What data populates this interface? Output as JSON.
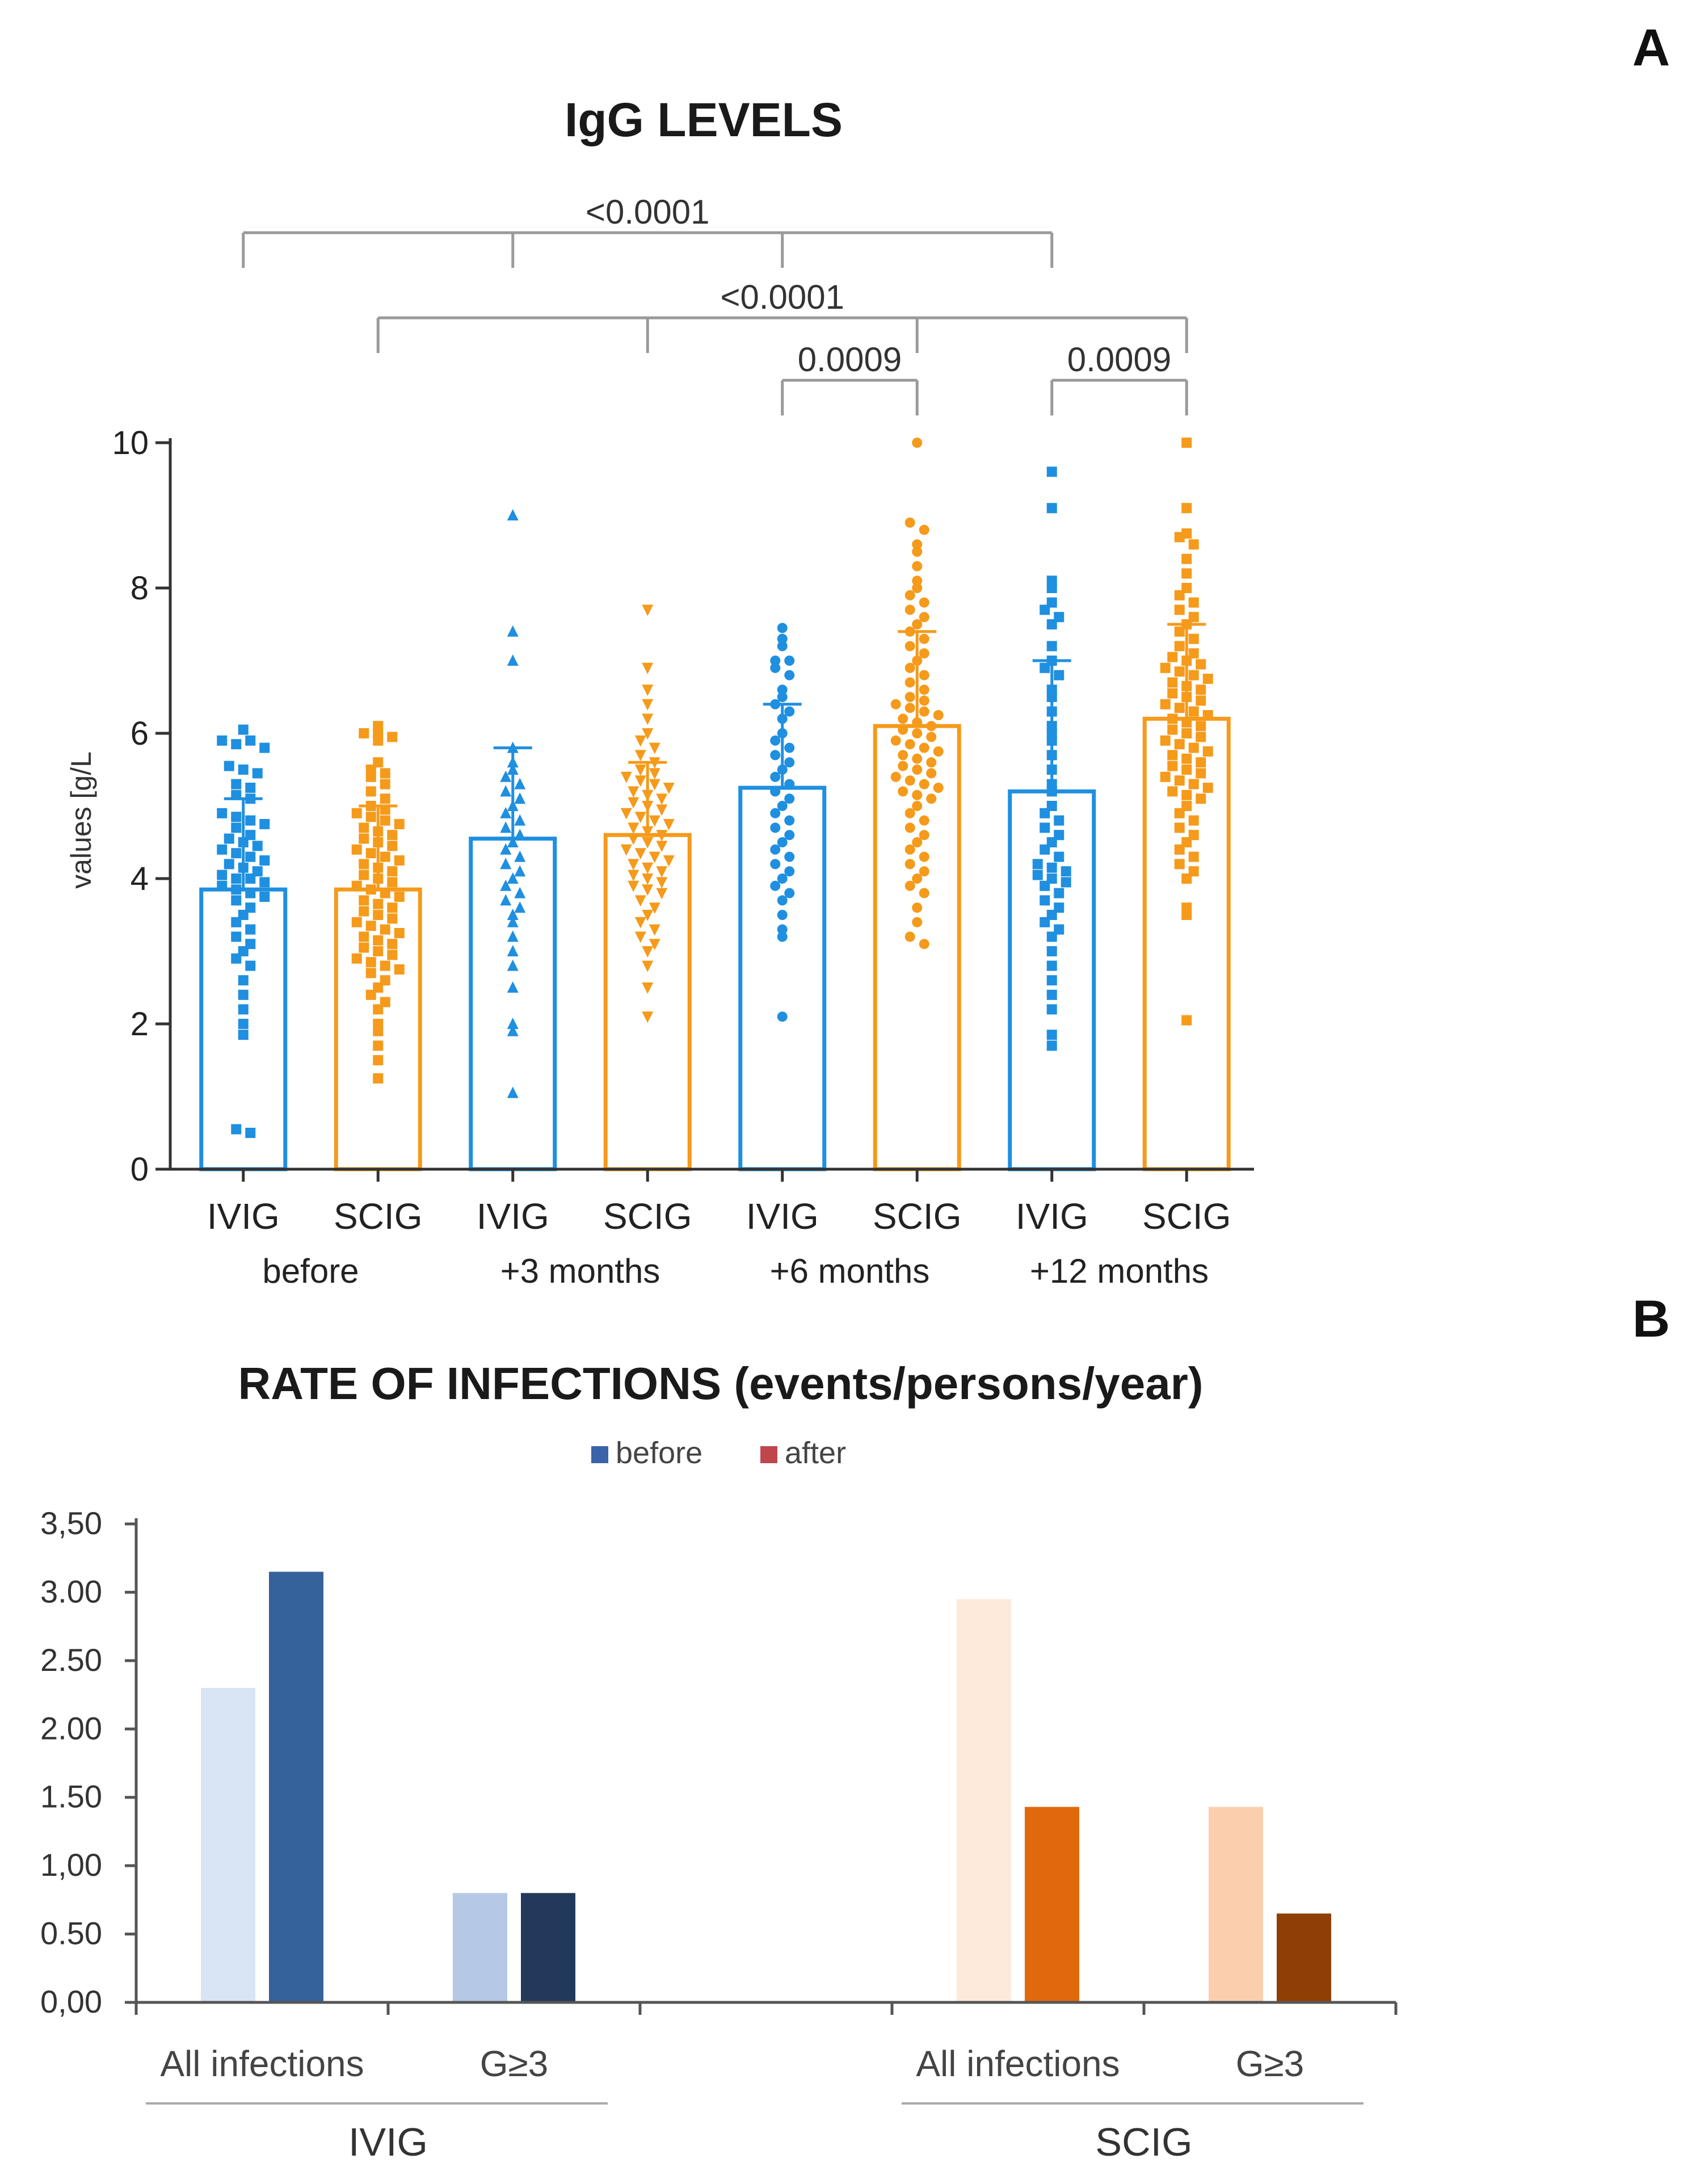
{
  "panel_labels": {
    "a": "A",
    "b": "B"
  },
  "colors": {
    "ivig": "#1f8fe0",
    "scig": "#f59a1a",
    "axis": "#333333",
    "bracket": "#9a9a9a",
    "ivig_before": "#d9e4f4",
    "ivig_after": "#35629a",
    "ivig_g3_before": "#b5c9e6",
    "ivig_g3_after": "#22395c",
    "scig_before": "#fdeadb",
    "scig_after": "#e0690e",
    "scig_g3_before": "#fbcfae",
    "scig_g3_after": "#8f3f05",
    "legend_before": "#3a63a8",
    "legend_after": "#c0464d"
  },
  "chart_data": [
    {
      "type": "scatter",
      "title": "IgG LEVELS",
      "ylabel": "values [g/L",
      "ylim": [
        0,
        10
      ],
      "yticks": [
        "0",
        "2",
        "4",
        "6",
        "8",
        "10"
      ],
      "categories": [
        "IVIG",
        "SCIG",
        "IVIG",
        "SCIG",
        "IVIG",
        "SCIG",
        "IVIG",
        "SCIG"
      ],
      "groups": [
        "before",
        "+3 months",
        "+6 months",
        "+12 months"
      ],
      "means": [
        3.85,
        3.85,
        4.55,
        4.6,
        5.25,
        6.1,
        5.2,
        6.2
      ],
      "sd_upper": [
        5.1,
        5.0,
        5.8,
        5.6,
        6.4,
        7.4,
        7.0,
        7.5
      ],
      "series": [
        {
          "name": "IVIG before",
          "marker": "square",
          "values": [
            6.05,
            5.9,
            5.85,
            5.9,
            5.8,
            5.55,
            5.5,
            5.45,
            5.3,
            5.25,
            5.15,
            5.1,
            4.9,
            4.85,
            4.8,
            4.75,
            4.7,
            4.6,
            4.55,
            4.5,
            4.45,
            4.4,
            4.35,
            4.3,
            4.25,
            4.2,
            4.15,
            4.1,
            4.05,
            4.0,
            4.0,
            3.95,
            3.9,
            3.85,
            3.8,
            3.75,
            3.7,
            3.6,
            3.5,
            3.4,
            3.3,
            3.2,
            3.1,
            3.0,
            2.9,
            2.8,
            2.6,
            2.4,
            2.2,
            2.0,
            1.85,
            0.55,
            0.5
          ]
        },
        {
          "name": "SCIG before",
          "marker": "square",
          "values": [
            6.1,
            6.0,
            6.0,
            5.95,
            5.9,
            5.6,
            5.5,
            5.45,
            5.4,
            5.3,
            5.2,
            5.1,
            5.0,
            4.95,
            4.9,
            4.85,
            4.8,
            4.75,
            4.7,
            4.65,
            4.6,
            4.55,
            4.5,
            4.45,
            4.4,
            4.35,
            4.3,
            4.25,
            4.2,
            4.15,
            4.1,
            4.05,
            4.0,
            3.95,
            3.9,
            3.85,
            3.8,
            3.75,
            3.7,
            3.65,
            3.6,
            3.55,
            3.5,
            3.45,
            3.4,
            3.35,
            3.3,
            3.25,
            3.2,
            3.15,
            3.1,
            3.05,
            3.0,
            2.95,
            2.9,
            2.85,
            2.8,
            2.75,
            2.7,
            2.6,
            2.5,
            2.4,
            2.3,
            2.2,
            2.0,
            1.9,
            1.7,
            1.5,
            1.25
          ]
        },
        {
          "name": "IVIG +3 months",
          "marker": "triangle-up",
          "values": [
            9.0,
            7.4,
            7.0,
            5.8,
            5.6,
            5.5,
            5.4,
            5.3,
            5.2,
            5.1,
            5.0,
            4.9,
            4.8,
            4.7,
            4.6,
            4.5,
            4.4,
            4.3,
            4.2,
            4.1,
            4.0,
            3.9,
            3.8,
            3.7,
            3.6,
            3.5,
            3.4,
            3.2,
            3.0,
            2.8,
            2.5,
            2.0,
            1.9,
            1.05
          ]
        },
        {
          "name": "SCIG +3 months",
          "marker": "triangle-down",
          "values": [
            7.7,
            6.9,
            6.6,
            6.4,
            6.2,
            6.0,
            5.9,
            5.8,
            5.7,
            5.6,
            5.5,
            5.45,
            5.4,
            5.35,
            5.3,
            5.25,
            5.2,
            5.15,
            5.1,
            5.05,
            5.0,
            4.95,
            4.9,
            4.85,
            4.8,
            4.75,
            4.7,
            4.65,
            4.6,
            4.55,
            4.5,
            4.45,
            4.4,
            4.35,
            4.3,
            4.25,
            4.2,
            4.15,
            4.1,
            4.05,
            4.0,
            3.95,
            3.9,
            3.85,
            3.8,
            3.7,
            3.6,
            3.5,
            3.4,
            3.3,
            3.2,
            3.1,
            3.0,
            2.8,
            2.5,
            2.1
          ]
        },
        {
          "name": "IVIG +6 months",
          "marker": "circle",
          "values": [
            7.45,
            7.3,
            7.2,
            7.0,
            7.0,
            6.9,
            6.8,
            6.6,
            6.5,
            6.4,
            6.3,
            6.2,
            6.0,
            5.9,
            5.8,
            5.7,
            5.6,
            5.5,
            5.4,
            5.3,
            5.2,
            5.1,
            5.0,
            4.9,
            4.8,
            4.7,
            4.6,
            4.5,
            4.4,
            4.3,
            4.2,
            4.1,
            4.0,
            3.9,
            3.8,
            3.7,
            3.5,
            3.3,
            3.2,
            2.1
          ]
        },
        {
          "name": "SCIG +6 months",
          "marker": "circle",
          "values": [
            10.0,
            8.9,
            8.8,
            8.6,
            8.5,
            8.3,
            8.1,
            8.0,
            7.9,
            7.8,
            7.7,
            7.6,
            7.5,
            7.4,
            7.3,
            7.2,
            7.1,
            7.0,
            6.9,
            6.8,
            6.7,
            6.6,
            6.5,
            6.45,
            6.4,
            6.35,
            6.3,
            6.25,
            6.2,
            6.15,
            6.1,
            6.05,
            6.0,
            5.95,
            5.9,
            5.85,
            5.8,
            5.75,
            5.7,
            5.65,
            5.6,
            5.55,
            5.5,
            5.45,
            5.4,
            5.35,
            5.3,
            5.25,
            5.2,
            5.15,
            5.1,
            5.0,
            4.9,
            4.8,
            4.7,
            4.6,
            4.5,
            4.4,
            4.3,
            4.2,
            4.1,
            4.0,
            3.9,
            3.8,
            3.6,
            3.4,
            3.2,
            3.1
          ]
        },
        {
          "name": "IVIG +12 months",
          "marker": "square",
          "values": [
            9.6,
            9.1,
            8.1,
            8.0,
            7.8,
            7.7,
            7.6,
            7.5,
            7.2,
            7.0,
            6.9,
            6.8,
            6.6,
            6.5,
            6.3,
            6.1,
            6.0,
            5.9,
            5.7,
            5.5,
            5.3,
            5.2,
            5.0,
            4.9,
            4.8,
            4.7,
            4.6,
            4.5,
            4.4,
            4.3,
            4.2,
            4.15,
            4.1,
            4.05,
            4.0,
            3.95,
            3.9,
            3.8,
            3.7,
            3.6,
            3.5,
            3.4,
            3.3,
            3.2,
            3.0,
            2.8,
            2.6,
            2.4,
            2.2,
            1.85,
            1.7
          ]
        },
        {
          "name": "SCIG +12 months",
          "marker": "square",
          "values": [
            10.0,
            9.1,
            8.75,
            8.7,
            8.6,
            8.4,
            8.2,
            8.0,
            7.9,
            7.8,
            7.7,
            7.6,
            7.5,
            7.4,
            7.3,
            7.2,
            7.1,
            7.05,
            7.0,
            6.95,
            6.9,
            6.85,
            6.8,
            6.75,
            6.7,
            6.65,
            6.6,
            6.55,
            6.5,
            6.45,
            6.4,
            6.35,
            6.3,
            6.25,
            6.2,
            6.15,
            6.1,
            6.05,
            6.0,
            5.95,
            5.9,
            5.85,
            5.8,
            5.75,
            5.7,
            5.65,
            5.6,
            5.55,
            5.5,
            5.45,
            5.4,
            5.35,
            5.3,
            5.25,
            5.2,
            5.15,
            5.1,
            5.0,
            4.9,
            4.8,
            4.7,
            4.6,
            4.5,
            4.4,
            4.3,
            4.2,
            4.1,
            4.0,
            3.6,
            3.5,
            2.05
          ]
        }
      ],
      "annotations": [
        {
          "label": "<0.0001",
          "row": 1,
          "bars": [
            0,
            2,
            4,
            6
          ]
        },
        {
          "label": "<0.0001",
          "row": 2,
          "bars": [
            1,
            3,
            5,
            7
          ]
        },
        {
          "label": "0.0009",
          "row": 3,
          "bars": [
            4,
            5
          ]
        },
        {
          "label": "0.0009",
          "row": 3,
          "bars": [
            6,
            7
          ]
        }
      ]
    },
    {
      "type": "bar",
      "title": "RATE OF INFECTIONS (events/persons/year)",
      "legend": [
        "before",
        "after"
      ],
      "legend_position": "top-center",
      "ylim": [
        0,
        3.5
      ],
      "yticks": [
        "0,00",
        "0.50",
        "1,00",
        "1.50",
        "2.00",
        "2.50",
        "3.00",
        "3,50"
      ],
      "categories": [
        "All infections",
        "G≥3",
        "All infections",
        "G≥3"
      ],
      "groups": [
        "IVIG",
        "SCIG"
      ],
      "series": [
        {
          "name": "before",
          "values": [
            2.3,
            0.8,
            2.95,
            1.43
          ]
        },
        {
          "name": "after",
          "values": [
            3.15,
            0.8,
            1.43,
            0.65
          ]
        }
      ]
    }
  ]
}
